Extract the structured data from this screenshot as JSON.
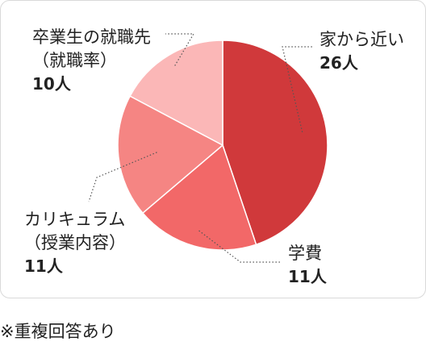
{
  "chart_data": {
    "type": "pie",
    "categories": [
      "家から近い",
      "学費",
      "カリキュラム（授業内容）",
      "卒業生の就職先（就職率）"
    ],
    "values": [
      26,
      11,
      11,
      10
    ],
    "labels": [
      {
        "lines": [
          "家から近い"
        ],
        "count": "26人"
      },
      {
        "lines": [
          "学費"
        ],
        "count": "11人"
      },
      {
        "lines": [
          "カリキュラム",
          "（授業内容）"
        ],
        "count": "11人"
      },
      {
        "lines": [
          "卒業生の就職先",
          "（就職率）"
        ],
        "count": "10人"
      }
    ],
    "colors": [
      "#d0393b",
      "#f26868",
      "#f58583",
      "#fbb7b7"
    ],
    "start": "12 o'clock",
    "direction": "clockwise"
  },
  "footnote": "※重複回答あり"
}
